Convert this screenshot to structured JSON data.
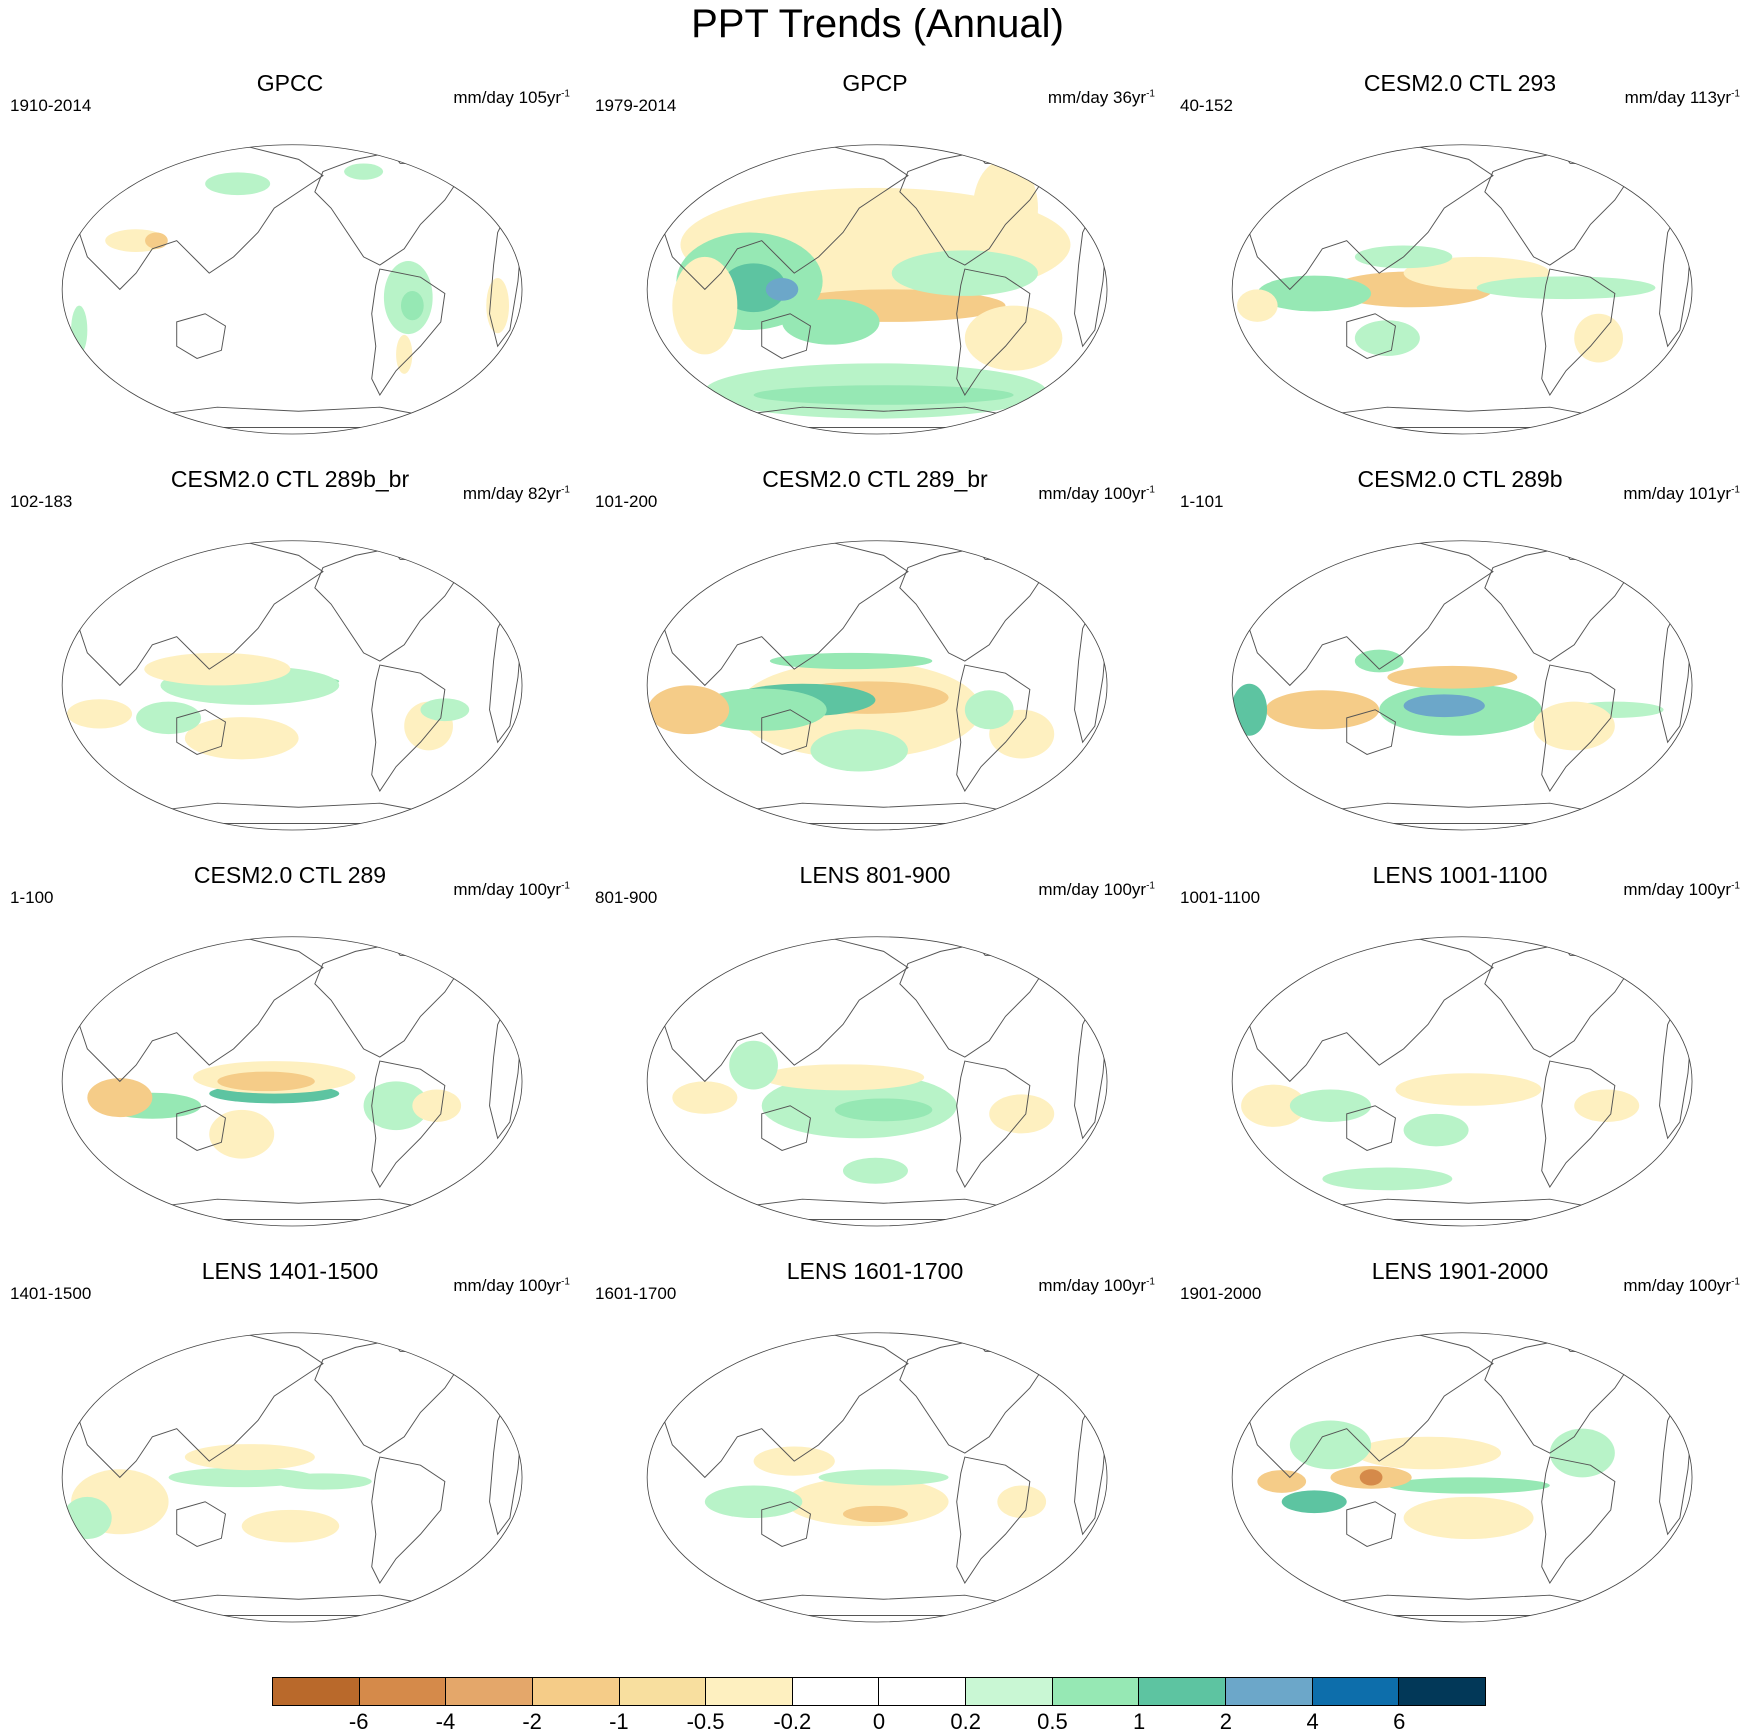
{
  "title": "PPT Trends (Annual)",
  "panels": [
    {
      "title": "GPCC",
      "period": "1910-2014",
      "units": "mm/day 105yr",
      "unit_exp": "-1",
      "blobs": [
        [
          "#fef0c0",
          100,
          210,
          38,
          14
        ],
        [
          "#f5cc88",
          125,
          210,
          14,
          10
        ],
        [
          "#b8f3c8",
          435,
          280,
          30,
          45
        ],
        [
          "#96e8b4",
          440,
          290,
          14,
          18
        ],
        [
          "#b8f3c8",
          225,
          140,
          40,
          14
        ],
        [
          "#b8f3c8",
          380,
          125,
          24,
          10
        ],
        [
          "#fef0c0",
          545,
          290,
          14,
          34
        ],
        [
          "#b8f3c8",
          30,
          320,
          10,
          30
        ],
        [
          "#fef0c0",
          430,
          350,
          10,
          24
        ]
      ]
    },
    {
      "title": "GPCP",
      "period": "1979-2014",
      "units": "mm/day 36yr",
      "unit_exp": "-1",
      "blobs": [
        [
          "#fef0c0",
          290,
          215,
          240,
          70
        ],
        [
          "#f5cc88",
          310,
          290,
          140,
          20
        ],
        [
          "#96e8b4",
          135,
          260,
          90,
          60
        ],
        [
          "#5dc4a1",
          140,
          268,
          40,
          30
        ],
        [
          "#6ca7c9",
          175,
          270,
          20,
          14
        ],
        [
          "#96e8b4",
          235,
          310,
          60,
          28
        ],
        [
          "#b8f3c8",
          290,
          395,
          210,
          34
        ],
        [
          "#96e8b4",
          300,
          400,
          160,
          12
        ],
        [
          "#fef0c0",
          450,
          170,
          40,
          60
        ],
        [
          "#b8f3c8",
          400,
          250,
          90,
          28
        ],
        [
          "#fef0c0",
          80,
          290,
          40,
          60
        ],
        [
          "#fef0c0",
          460,
          330,
          60,
          40
        ]
      ]
    },
    {
      "title": "CESM2.0 CTL 293",
      "period": "40-152",
      "units": "mm/day 113yr",
      "unit_exp": "-1",
      "blobs": [
        [
          "#f5cc88",
          230,
          270,
          100,
          22
        ],
        [
          "#fef0c0",
          310,
          250,
          90,
          20
        ],
        [
          "#96e8b4",
          110,
          275,
          70,
          22
        ],
        [
          "#b8f3c8",
          420,
          268,
          110,
          14
        ],
        [
          "#fef0c0",
          40,
          290,
          25,
          20
        ],
        [
          "#b8f3c8",
          200,
          330,
          40,
          22
        ],
        [
          "#fef0c0",
          460,
          330,
          30,
          30
        ],
        [
          "#b8f3c8",
          220,
          230,
          60,
          14
        ]
      ]
    },
    {
      "title": "CESM2.0 CTL 289b_br",
      "period": "102-183",
      "units": "mm/day 82yr",
      "unit_exp": "-1",
      "blobs": [
        [
          "#96e8b4",
          270,
          265,
          80,
          8
        ],
        [
          "#b8f3c8",
          240,
          270,
          110,
          24
        ],
        [
          "#fef0c0",
          200,
          250,
          90,
          20
        ],
        [
          "#fef0c0",
          230,
          335,
          70,
          26
        ],
        [
          "#fef0c0",
          55,
          305,
          40,
          18
        ],
        [
          "#b8f3c8",
          140,
          310,
          40,
          20
        ],
        [
          "#fef0c0",
          460,
          320,
          30,
          30
        ],
        [
          "#b8f3c8",
          480,
          300,
          30,
          14
        ]
      ]
    },
    {
      "title": "CESM2.0 CTL 289_br",
      "period": "101-200",
      "units": "mm/day 100yr",
      "unit_exp": "-1",
      "blobs": [
        [
          "#fef0c0",
          270,
          300,
          150,
          60
        ],
        [
          "#f5cc88",
          280,
          285,
          100,
          20
        ],
        [
          "#5dc4a1",
          200,
          288,
          90,
          20
        ],
        [
          "#96e8b4",
          150,
          300,
          80,
          26
        ],
        [
          "#f5cc88",
          60,
          300,
          50,
          30
        ],
        [
          "#96e8b4",
          260,
          240,
          100,
          10
        ],
        [
          "#b8f3c8",
          270,
          350,
          60,
          26
        ],
        [
          "#fef0c0",
          470,
          330,
          40,
          30
        ],
        [
          "#b8f3c8",
          430,
          300,
          30,
          24
        ]
      ]
    },
    {
      "title": "CESM2.0 CTL 289b",
      "period": "1-101",
      "units": "mm/day 101yr",
      "unit_exp": "-1",
      "blobs": [
        [
          "#96e8b4",
          290,
          300,
          100,
          32
        ],
        [
          "#6ca7c9",
          270,
          295,
          50,
          14
        ],
        [
          "#f5cc88",
          280,
          260,
          80,
          14
        ],
        [
          "#f5cc88",
          120,
          300,
          70,
          24
        ],
        [
          "#5dc4a1",
          30,
          300,
          22,
          32
        ],
        [
          "#b8f3c8",
          480,
          300,
          60,
          10
        ],
        [
          "#fef0c0",
          430,
          320,
          50,
          30
        ],
        [
          "#96e8b4",
          190,
          240,
          30,
          14
        ]
      ]
    },
    {
      "title": "CESM2.0 CTL 289",
      "period": "1-100",
      "units": "mm/day 100yr",
      "unit_exp": "-1",
      "blobs": [
        [
          "#5dc4a1",
          270,
          285,
          80,
          12
        ],
        [
          "#fef0c0",
          270,
          265,
          100,
          20
        ],
        [
          "#f5cc88",
          260,
          270,
          60,
          12
        ],
        [
          "#96e8b4",
          120,
          300,
          60,
          16
        ],
        [
          "#f5cc88",
          80,
          290,
          40,
          24
        ],
        [
          "#fef0c0",
          230,
          335,
          40,
          30
        ],
        [
          "#b8f3c8",
          420,
          300,
          40,
          30
        ],
        [
          "#fef0c0",
          470,
          300,
          30,
          20
        ]
      ]
    },
    {
      "title": "LENS 801-900",
      "period": "801-900",
      "units": "mm/day 100yr",
      "unit_exp": "-1",
      "blobs": [
        [
          "#b8f3c8",
          270,
          300,
          120,
          40
        ],
        [
          "#96e8b4",
          300,
          305,
          60,
          14
        ],
        [
          "#fef0c0",
          250,
          265,
          100,
          16
        ],
        [
          "#fef0c0",
          80,
          290,
          40,
          20
        ],
        [
          "#b8f3c8",
          140,
          250,
          30,
          30
        ],
        [
          "#fef0c0",
          470,
          310,
          40,
          24
        ],
        [
          "#b8f3c8",
          290,
          380,
          40,
          16
        ]
      ]
    },
    {
      "title": "LENS 1001-1100",
      "period": "1001-1100",
      "units": "mm/day 100yr",
      "unit_exp": "-1",
      "blobs": [
        [
          "#fef0c0",
          60,
          300,
          40,
          26
        ],
        [
          "#b8f3c8",
          130,
          300,
          50,
          20
        ],
        [
          "#fef0c0",
          300,
          280,
          90,
          20
        ],
        [
          "#fef0c0",
          470,
          300,
          40,
          20
        ],
        [
          "#b8f3c8",
          260,
          330,
          40,
          20
        ],
        [
          "#b8f3c8",
          200,
          390,
          80,
          14
        ]
      ]
    },
    {
      "title": "LENS 1401-1500",
      "period": "1401-1500",
      "units": "mm/day 100yr",
      "unit_exp": "-1",
      "blobs": [
        [
          "#fef0c0",
          80,
          300,
          60,
          40
        ],
        [
          "#b8f3c8",
          230,
          270,
          90,
          12
        ],
        [
          "#fef0c0",
          240,
          245,
          80,
          16
        ],
        [
          "#fef0c0",
          290,
          330,
          60,
          20
        ],
        [
          "#b8f3c8",
          330,
          275,
          60,
          10
        ],
        [
          "#b8f3c8",
          40,
          320,
          30,
          26
        ]
      ]
    },
    {
      "title": "LENS 1601-1700",
      "period": "1601-1700",
      "units": "mm/day 100yr",
      "unit_exp": "-1",
      "blobs": [
        [
          "#fef0c0",
          280,
          300,
          100,
          30
        ],
        [
          "#f5cc88",
          290,
          315,
          40,
          10
        ],
        [
          "#b8f3c8",
          140,
          300,
          60,
          20
        ],
        [
          "#fef0c0",
          190,
          250,
          50,
          18
        ],
        [
          "#b8f3c8",
          300,
          270,
          80,
          10
        ],
        [
          "#fef0c0",
          470,
          300,
          30,
          20
        ]
      ]
    },
    {
      "title": "LENS 1901-2000",
      "period": "1901-2000",
      "units": "mm/day 100yr",
      "unit_exp": "-1",
      "blobs": [
        [
          "#5dc4a1",
          110,
          300,
          40,
          14
        ],
        [
          "#96e8b4",
          300,
          280,
          100,
          10
        ],
        [
          "#f5cc88",
          180,
          270,
          50,
          14
        ],
        [
          "#d58a4a",
          180,
          270,
          14,
          10
        ],
        [
          "#f5cc88",
          70,
          275,
          30,
          14
        ],
        [
          "#fef0c0",
          300,
          320,
          80,
          26
        ],
        [
          "#fef0c0",
          250,
          240,
          90,
          20
        ],
        [
          "#b8f3c8",
          130,
          230,
          50,
          30
        ],
        [
          "#b8f3c8",
          440,
          240,
          40,
          30
        ]
      ]
    }
  ],
  "colorbar": {
    "colors": [
      "#b9692b",
      "#d58a4a",
      "#e4a76a",
      "#f5cc88",
      "#f8df9f",
      "#fef0c0",
      "#ffffff",
      "#ffffff",
      "#c9f7d4",
      "#96e8b4",
      "#5dc4a1",
      "#6ca7c9",
      "#0d6eab",
      "#023858"
    ],
    "labels": [
      "-6",
      "-4",
      "-2",
      "-1",
      "-0.5",
      "-0.2",
      "0",
      "0.2",
      "0.5",
      "1",
      "2",
      "4",
      "6"
    ]
  }
}
